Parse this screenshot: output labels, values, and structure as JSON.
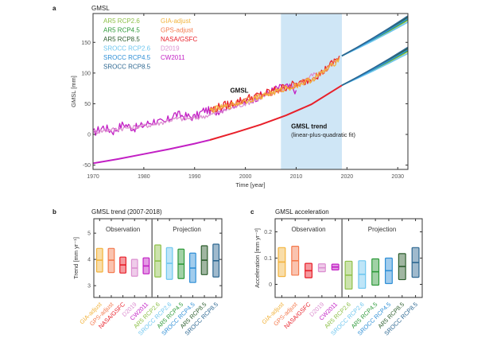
{
  "chart_data": [
    {
      "panel": "a",
      "type": "line",
      "title": "GMSL",
      "xlabel": "Time [year]",
      "ylabel": "GMSL [mm]",
      "xlim": [
        1970,
        2032
      ],
      "ylim": [
        -57,
        197
      ],
      "xticks": [
        1970,
        1980,
        1990,
        2000,
        2010,
        2020,
        2030
      ],
      "yticks": [
        -50,
        0,
        50,
        100,
        150
      ],
      "shaded_period": [
        2007,
        2019
      ],
      "shaded_color": "#cfe6f6",
      "annotations": [
        {
          "text": "GMSL",
          "x": 1997,
          "y": 68,
          "bold": true
        },
        {
          "text": "GMSL trend",
          "x": 2009,
          "y": 10,
          "bold": true
        },
        {
          "text": "(linear-plus-quadratic fit)",
          "x": 2009,
          "y": -4,
          "bold": false
        }
      ],
      "legend": {
        "placement": "top-left",
        "columns": [
          [
            "AR5 RCP2.6",
            "AR5 RCP4.5",
            "AR5 RCP8.5",
            "SROCC RCP2.6",
            "SROCC RCP4.5",
            "SROCC RCP8.5"
          ],
          [
            "GIA-adjust",
            "GPS-adjust",
            "NASA/GSFC",
            "D2019",
            "CW2011"
          ]
        ]
      },
      "observation_series": [
        {
          "name": "CW2011",
          "color": "#c21fc4",
          "x": [
            1970,
            1972,
            1974,
            1976,
            1978,
            1980,
            1982,
            1984,
            1986,
            1988,
            1990,
            1992,
            1994,
            1996,
            1998,
            2000,
            2002,
            2004,
            2006,
            2008,
            2010
          ],
          "y": [
            2,
            12,
            5,
            17,
            10,
            15,
            22,
            18,
            33,
            30,
            28,
            40,
            36,
            44,
            50,
            52,
            60,
            66,
            74,
            78,
            72
          ]
        },
        {
          "name": "D2019",
          "color": "#dc8fd0",
          "x": [
            1970,
            1974,
            1978,
            1982,
            1986,
            1990,
            1994,
            1998,
            2002,
            2006,
            2010,
            2014
          ],
          "y": [
            4,
            8,
            12,
            16,
            25,
            26,
            34,
            45,
            56,
            70,
            80,
            100
          ]
        },
        {
          "name": "NASA/GSFC",
          "color": "#e8202a",
          "x": [
            1993,
            1995,
            1997,
            1999,
            2001,
            2003,
            2005,
            2007,
            2009,
            2011,
            2013,
            2015,
            2017,
            2018.5
          ],
          "y": [
            40,
            45,
            50,
            55,
            60,
            64,
            70,
            75,
            80,
            83,
            92,
            100,
            115,
            128
          ]
        },
        {
          "name": "GPS-adjust",
          "color": "#f47a4e",
          "x": [
            1993,
            1997,
            2001,
            2005,
            2009,
            2013,
            2017,
            2018.5
          ],
          "y": [
            40,
            48,
            58,
            68,
            78,
            90,
            112,
            126
          ]
        },
        {
          "name": "GIA-adjust",
          "color": "#f2b33d",
          "x": [
            1993,
            1997,
            2001,
            2005,
            2009,
            2013,
            2017,
            2018.5
          ],
          "y": [
            39,
            47,
            57,
            67,
            77,
            89,
            111,
            125
          ]
        }
      ],
      "trend_series": [
        {
          "name": "CW2011 trend",
          "color": "#c21fc4",
          "x": [
            1970,
            1975,
            1980,
            1985,
            1990,
            1993
          ],
          "y": [
            -47,
            -40,
            -32,
            -24,
            -15,
            -9
          ]
        },
        {
          "name": "Obs trend (1993-2019)",
          "color": "#e8202a",
          "x": [
            1993,
            1998,
            2003,
            2008,
            2013,
            2019
          ],
          "y": [
            -9,
            3,
            16,
            31,
            49,
            80
          ]
        }
      ],
      "projection_series": [
        {
          "name": "AR5 RCP2.6",
          "color": "#8ec04a",
          "offset_group": "both",
          "end_upper": 186,
          "end_lower": 135
        },
        {
          "name": "AR5 RCP4.5",
          "color": "#2e9a3a",
          "offset_group": "both",
          "end_upper": 188,
          "end_lower": 137
        },
        {
          "name": "AR5 RCP8.5",
          "color": "#2d5e2e",
          "offset_group": "both",
          "end_upper": 191,
          "end_lower": 140
        },
        {
          "name": "SROCC RCP2.6",
          "color": "#6ec6ef",
          "offset_group": "both",
          "end_upper": 183,
          "end_lower": 132
        },
        {
          "name": "SROCC RCP4.5",
          "color": "#2f8fd6",
          "offset_group": "both",
          "end_upper": 189,
          "end_lower": 138
        },
        {
          "name": "SROCC RCP8.5",
          "color": "#2c6791",
          "offset_group": "both",
          "end_upper": 193,
          "end_lower": 142
        }
      ],
      "projection_start": {
        "x": 2019,
        "upper_y": 128,
        "lower_y": 80
      },
      "projection_end_x": 2032
    },
    {
      "panel": "b",
      "type": "bar",
      "subtype": "range-box",
      "title": "GMSL trend (2007-2018)",
      "ylabel": "Trend [mm yr⁻¹]",
      "ylim": [
        2.55,
        5.55
      ],
      "yticks": [
        3,
        4,
        5
      ],
      "sections": [
        "Observation",
        "Projection"
      ],
      "categories": [
        "GIA-adjust",
        "GPS-adjust",
        "NASA/GSFC",
        "D2019",
        "CW2011",
        "AR5 RCP2.6",
        "SROCC RCP2.6",
        "AR5 RCP4.5",
        "SROCC RCP4.5",
        "AR5 RCP8.5",
        "SROCC RCP8.5"
      ],
      "low": [
        3.52,
        3.5,
        3.48,
        3.36,
        3.45,
        3.33,
        3.24,
        3.27,
        3.12,
        3.42,
        3.33
      ],
      "mid": [
        3.97,
        3.97,
        3.79,
        3.67,
        3.75,
        3.94,
        3.85,
        3.82,
        3.67,
        3.97,
        3.95
      ],
      "high": [
        4.42,
        4.42,
        4.09,
        4.0,
        4.06,
        4.55,
        4.45,
        4.39,
        4.24,
        4.52,
        4.58
      ]
    },
    {
      "panel": "c",
      "type": "bar",
      "subtype": "range-box",
      "title": "GMSL acceleration",
      "ylabel": "Acceleration [mm yr⁻²]",
      "ylim": [
        -0.05,
        0.25
      ],
      "yticks": [
        0,
        0.1,
        0.2
      ],
      "sections": [
        "Observation",
        "Projection"
      ],
      "categories": [
        "GIA-adjust",
        "GPS-adjust",
        "NASA/GSFC",
        "D2019",
        "CW2011",
        "AR5 RCP2.6",
        "SROCC RCP2.6",
        "AR5 RCP4.5",
        "SROCC RCP4.5",
        "AR5 RCP8.5",
        "SROCC RCP8.5"
      ],
      "low": [
        0.03,
        0.035,
        0.025,
        0.048,
        0.055,
        -0.018,
        -0.015,
        -0.003,
        0.003,
        0.018,
        0.027
      ],
      "mid": [
        0.085,
        0.09,
        0.052,
        0.063,
        0.066,
        0.035,
        0.038,
        0.048,
        0.052,
        0.068,
        0.083
      ],
      "high": [
        0.14,
        0.145,
        0.08,
        0.078,
        0.077,
        0.088,
        0.09,
        0.097,
        0.1,
        0.117,
        0.14
      ]
    }
  ],
  "category_colors": {
    "GIA-adjust": "#f2b33d",
    "GPS-adjust": "#f47a4e",
    "NASA/GSFC": "#e8202a",
    "D2019": "#dc8fd0",
    "CW2011": "#c21fc4",
    "AR5 RCP2.6": "#8ec04a",
    "AR5 RCP4.5": "#2e9a3a",
    "AR5 RCP8.5": "#2d5e2e",
    "SROCC RCP2.6": "#6ec6ef",
    "SROCC RCP4.5": "#2f8fd6",
    "SROCC RCP8.5": "#2c6791"
  },
  "labels": {
    "panel_a_letter": "a",
    "panel_b_letter": "b",
    "panel_c_letter": "c"
  }
}
